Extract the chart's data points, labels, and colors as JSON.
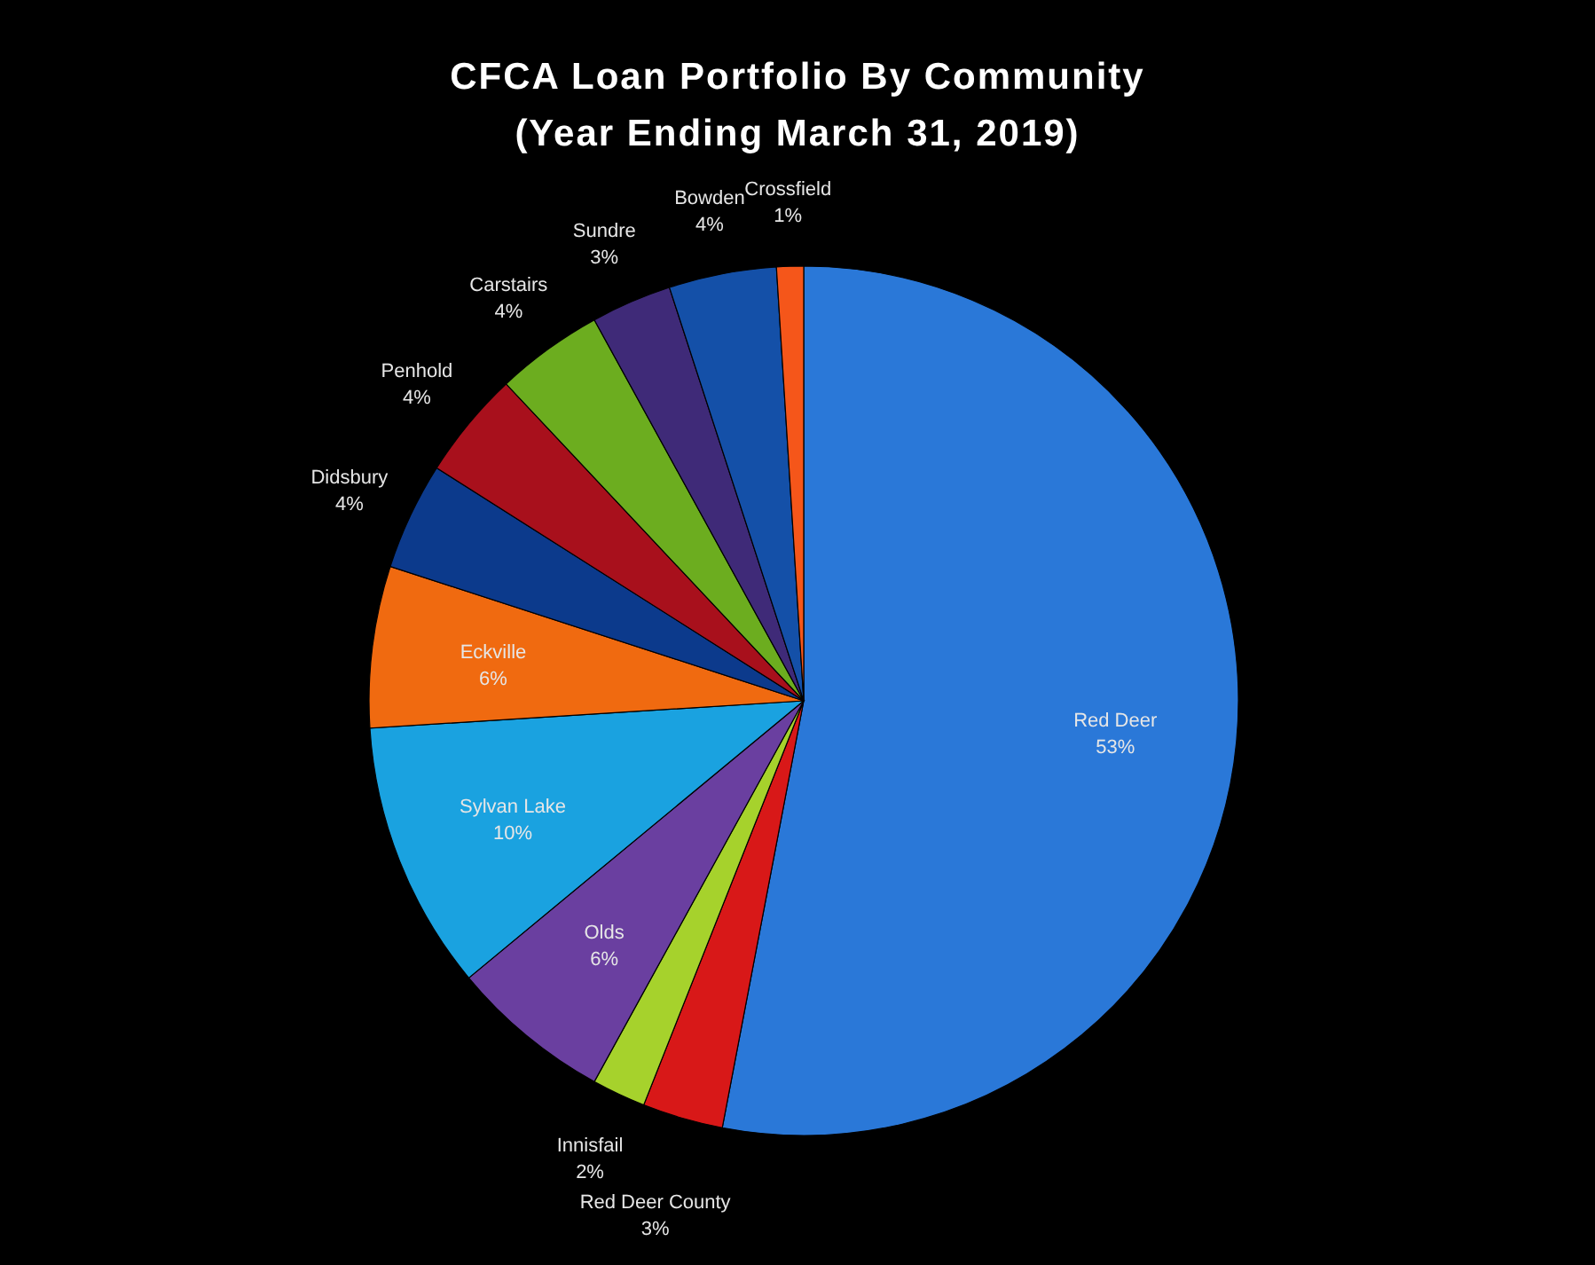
{
  "chart_data": {
    "type": "pie",
    "title": "CFCA Loan Portfolio By Community",
    "subtitle": "(Year Ending March 31, 2019)",
    "categories": [
      "Red Deer",
      "Red Deer County",
      "Innisfail",
      "Olds",
      "Sylvan Lake",
      "Eckville",
      "Didsbury",
      "Penhold",
      "Carstairs",
      "Sundre",
      "Bowden",
      "Crossfield"
    ],
    "values": [
      53,
      3,
      2,
      6,
      10,
      6,
      4,
      4,
      4,
      3,
      4,
      1
    ],
    "value_labels": [
      "53%",
      "3%",
      "2%",
      "6%",
      "10%",
      "6%",
      "4%",
      "4%",
      "4%",
      "3%",
      "4%",
      "1%"
    ],
    "colors": [
      "#2a78d8",
      "#d81818",
      "#a6d22c",
      "#6a3fa0",
      "#1aa2e0",
      "#f06a10",
      "#0c3a8c",
      "#a8101c",
      "#6cad1f",
      "#3f2a78",
      "#1450a8",
      "#f5561a"
    ],
    "legend": false
  }
}
